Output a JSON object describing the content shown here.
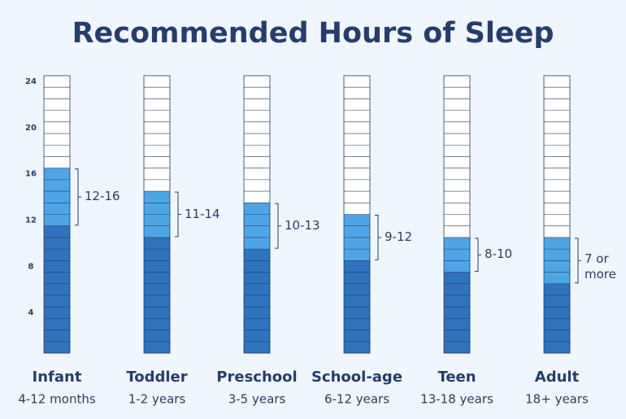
{
  "chart_data": {
    "type": "stacked_cells",
    "title": "Recommended Hours of Sleep",
    "categories": [
      "Infant",
      "Toddler",
      "Preschool",
      "School-age",
      "Teen",
      "Adult"
    ],
    "subtitles": [
      "4-12 months",
      "1-2 years",
      "3-5 years",
      "6-12 years",
      "13-18 years",
      "18+ years"
    ],
    "range_labels": [
      "12-16",
      "11-14",
      "10-13",
      "9-12",
      "8-10",
      "7 or more"
    ],
    "series": [
      {
        "color": "#2f72bd",
        "values": [
          11,
          10,
          9,
          8,
          7,
          6
        ]
      },
      {
        "color": "#4ea5e6",
        "values": [
          5,
          4,
          4,
          4,
          3,
          4
        ]
      }
    ],
    "ylim": [
      0,
      24
    ],
    "yticks": [
      4,
      8,
      12,
      16,
      20,
      24
    ]
  }
}
